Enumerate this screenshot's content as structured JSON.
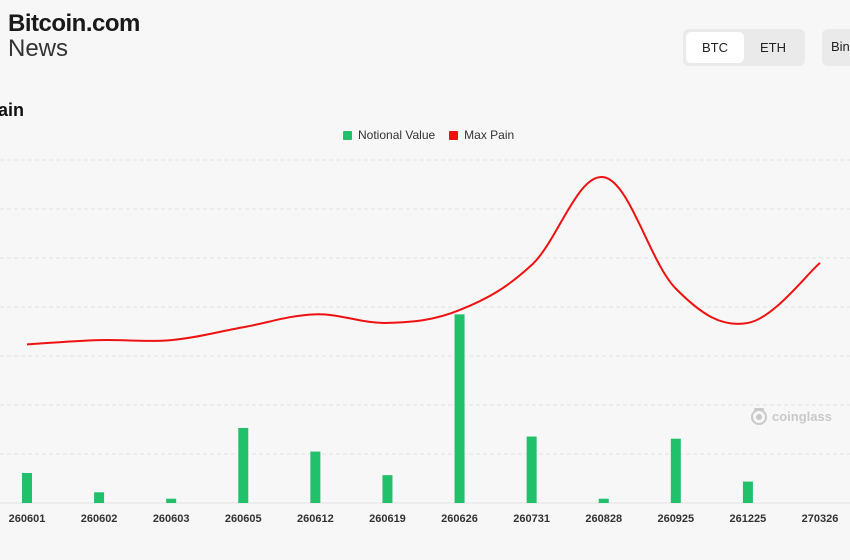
{
  "brand": {
    "line1": "Bitcoin.com",
    "line2": "News"
  },
  "tabs": [
    {
      "label": "BTC"
    },
    {
      "label": "ETH"
    }
  ],
  "exchange_label": "Bin",
  "chart_title": "ain",
  "watermark": "coinglass",
  "colors": {
    "notional": "#21c16b",
    "max_pain": "#ee1111",
    "grid": "#e3e3e3",
    "axis_text": "#333333"
  },
  "chart_data": {
    "type": "bar",
    "legend": [
      "Notional Value",
      "Max Pain"
    ],
    "legend_position": "top-center",
    "grid": true,
    "categories": [
      "260601",
      "260602",
      "260603",
      "260605",
      "260612",
      "260619",
      "260626",
      "260731",
      "260828",
      "260925",
      "261225",
      "270326"
    ],
    "series": [
      {
        "name": "Notional Value",
        "type": "bar",
        "values": [
          14,
          5,
          2,
          35,
          24,
          13,
          88,
          31,
          2,
          30,
          10,
          0
        ]
      },
      {
        "name": "Max Pain",
        "type": "line",
        "values": [
          74,
          76,
          76,
          82,
          88,
          84,
          90,
          111,
          152,
          100,
          84,
          112
        ]
      }
    ],
    "ylim": [
      0,
      160
    ]
  }
}
